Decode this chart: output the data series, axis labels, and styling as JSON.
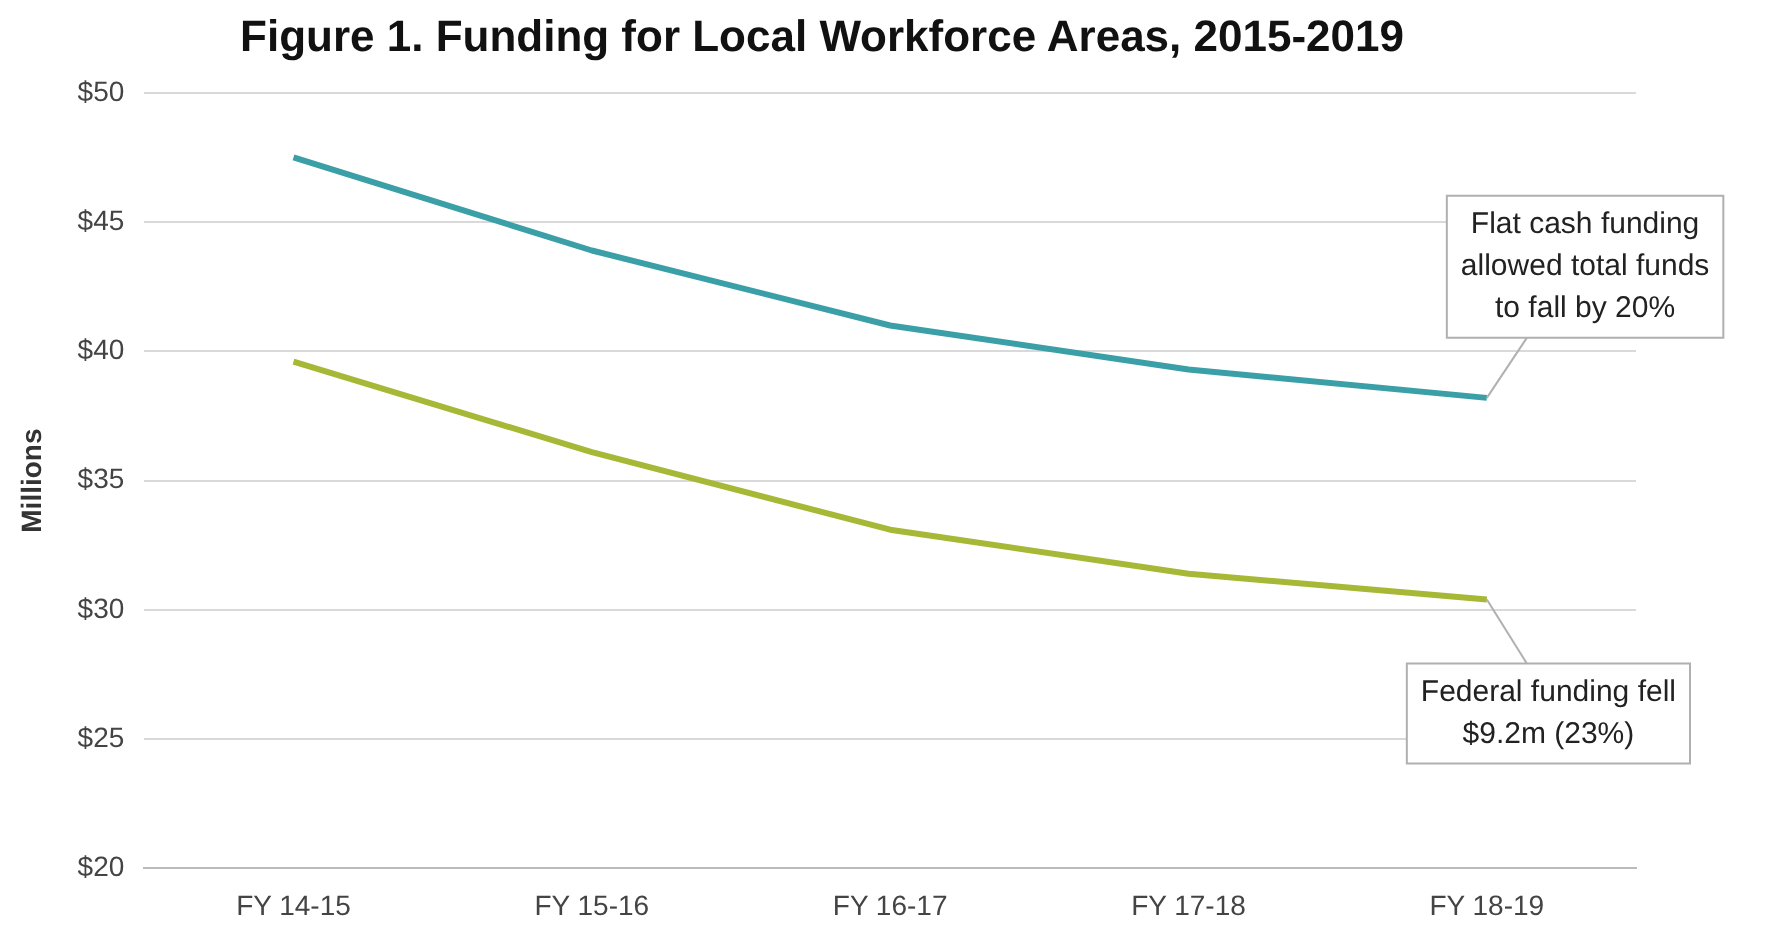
{
  "chart_data": {
    "type": "line",
    "title": "Figure 1. Funding for Local Workforce Areas, 2015-2019",
    "ylabel": "Millions",
    "categories": [
      "FY 14-15",
      "FY 15-16",
      "FY 16-17",
      "FY 17-18",
      "FY 18-19"
    ],
    "series": [
      {
        "color": "#3a9fa6",
        "values": [
          47.5,
          43.9,
          41.0,
          39.3,
          38.2
        ]
      },
      {
        "color": "#a7b836",
        "values": [
          39.6,
          36.1,
          33.1,
          31.4,
          30.4
        ]
      }
    ],
    "ylim": [
      20,
      50
    ],
    "yticks": [
      {
        "value": 20,
        "label": "$20"
      },
      {
        "value": 25,
        "label": "$25"
      },
      {
        "value": 30,
        "label": "$30"
      },
      {
        "value": 35,
        "label": "$35"
      },
      {
        "value": 40,
        "label": "$40"
      },
      {
        "value": 45,
        "label": "$45"
      },
      {
        "value": 50,
        "label": "$50"
      }
    ],
    "grid": "y",
    "legend": false,
    "marker": "none",
    "line_style": "solid",
    "annotations": [
      {
        "text": "Flat cash funding allowed total funds to fall by 20%",
        "x": "FY 18-19",
        "y": 38.2
      },
      {
        "text": "Federal funding fell $9.2m (23%)",
        "x": "FY 18-19",
        "y": 30.4
      }
    ]
  }
}
